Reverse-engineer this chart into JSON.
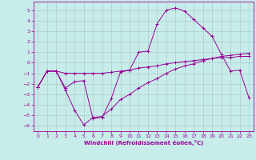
{
  "xlabel": "Windchill (Refroidissement éolien,°C)",
  "background_color": "#c8ece9",
  "grid_color": "#aacccc",
  "line_color": "#990099",
  "xlim": [
    -0.5,
    23.5
  ],
  "ylim": [
    -6.5,
    5.8
  ],
  "xticks": [
    0,
    1,
    2,
    3,
    4,
    5,
    6,
    7,
    8,
    9,
    10,
    11,
    12,
    13,
    14,
    15,
    16,
    17,
    18,
    19,
    20,
    21,
    22,
    23
  ],
  "yticks": [
    -6,
    -5,
    -4,
    -3,
    -2,
    -1,
    0,
    1,
    2,
    3,
    4,
    5
  ],
  "curve1_x": [
    0,
    1,
    2,
    3,
    4,
    5,
    6,
    7,
    8,
    9,
    10,
    11,
    12,
    13,
    14,
    15,
    16,
    17,
    18,
    19,
    20,
    21,
    22,
    23
  ],
  "curve1_y": [
    -2.3,
    -0.8,
    -0.8,
    -2.4,
    -1.8,
    -1.7,
    -5.3,
    -5.2,
    -3.4,
    -0.9,
    -0.7,
    1.0,
    1.1,
    3.7,
    5.0,
    5.2,
    4.9,
    4.1,
    3.3,
    2.5,
    0.8,
    -0.8,
    -0.7,
    -3.3
  ],
  "curve2_x": [
    0,
    1,
    2,
    3,
    4,
    5,
    6,
    7,
    8,
    9,
    10,
    11,
    12,
    13,
    14,
    15,
    16,
    17,
    18,
    19,
    20,
    21,
    22,
    23
  ],
  "curve2_y": [
    -2.3,
    -0.8,
    -0.8,
    -2.6,
    -4.5,
    -5.9,
    -5.2,
    -5.1,
    -4.4,
    -3.5,
    -3.0,
    -2.4,
    -1.9,
    -1.5,
    -1.0,
    -0.6,
    -0.3,
    -0.1,
    0.2,
    0.4,
    0.6,
    0.7,
    0.8,
    0.9
  ],
  "curve3_x": [
    0,
    1,
    2,
    3,
    4,
    5,
    6,
    7,
    8,
    9,
    10,
    11,
    12,
    13,
    14,
    15,
    16,
    17,
    18,
    19,
    20,
    21,
    22,
    23
  ],
  "curve3_y": [
    -2.3,
    -0.8,
    -0.8,
    -1.0,
    -1.0,
    -1.0,
    -1.0,
    -1.0,
    -0.9,
    -0.8,
    -0.7,
    -0.5,
    -0.4,
    -0.3,
    -0.1,
    0.0,
    0.1,
    0.2,
    0.3,
    0.4,
    0.5,
    0.5,
    0.6,
    0.6
  ]
}
